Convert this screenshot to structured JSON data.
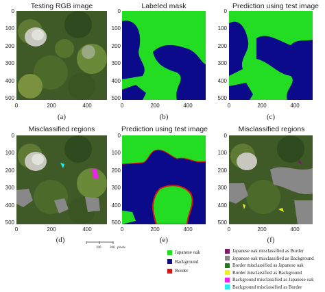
{
  "panels": [
    {
      "title": "Testing RGB image",
      "label": "(a)"
    },
    {
      "title": "Labeled mask",
      "label": "(b)"
    },
    {
      "title": "Prediction using test image",
      "label": "(c)"
    },
    {
      "title": "Misclassified regions",
      "label": "(d)"
    },
    {
      "title": "Prediction using test image",
      "label": "(e)"
    },
    {
      "title": "Misclassified regions",
      "label": "(f)"
    }
  ],
  "axes": {
    "y_ticks": [
      "0",
      "100",
      "200",
      "300",
      "400",
      "500"
    ],
    "x_ticks": [
      "0",
      "200",
      "400"
    ]
  },
  "scale_bar": {
    "tick_1": "100",
    "tick_2": "200",
    "unit": "pixels"
  },
  "legend_classes": [
    {
      "label": "Japanese oak",
      "color": "#22dd22"
    },
    {
      "label": "Background",
      "color": "#0a0a8a"
    },
    {
      "label": "Border",
      "color": "#dd1111"
    }
  ],
  "legend_errors": [
    {
      "label": "Japanese oak misclassified as Border",
      "color": "#7a1a6a"
    },
    {
      "label": "Japanese oak misclassified as Background",
      "color": "#888888"
    },
    {
      "label": "Border misclassified as Japanese oak",
      "color": "#1f7a1f"
    },
    {
      "label": "Border misclassified as Background",
      "color": "#eeee22"
    },
    {
      "label": "Background misclassified as Japanese oak",
      "color": "#ee22ee"
    },
    {
      "label": "Background misclassified as Border",
      "color": "#22eeee"
    }
  ]
}
